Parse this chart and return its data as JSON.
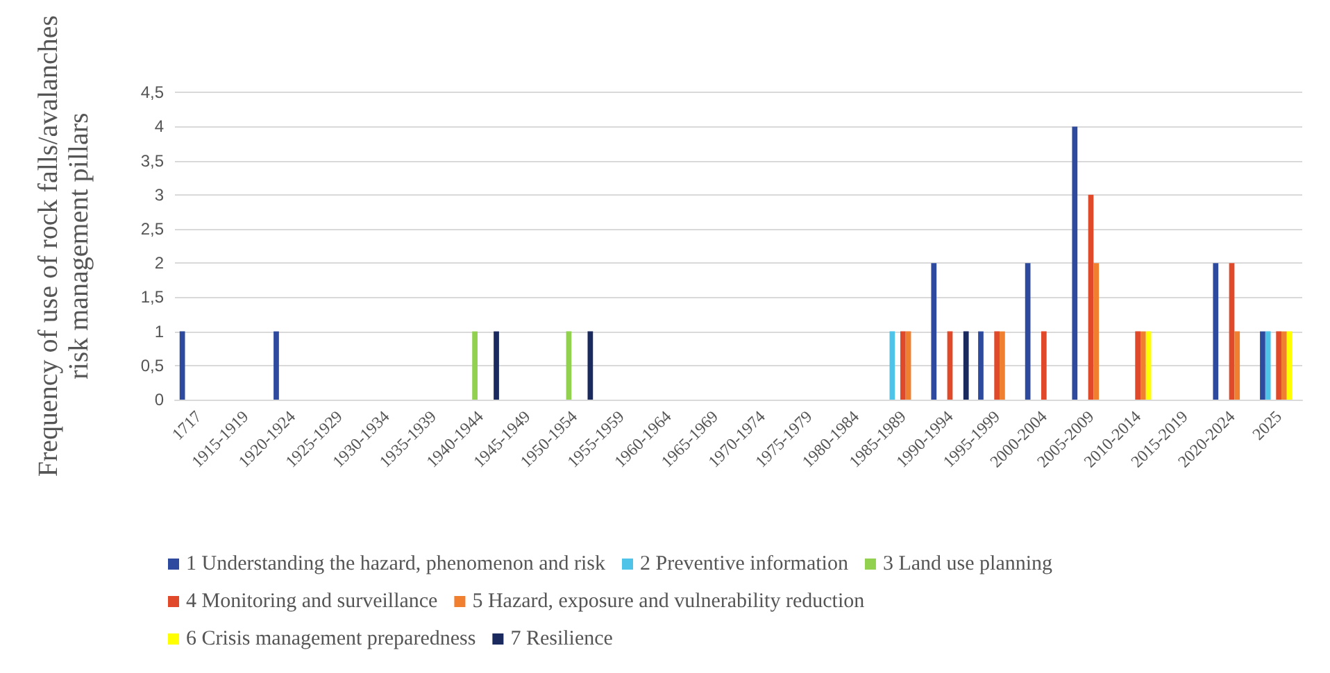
{
  "chart_data": {
    "type": "bar",
    "ylabel": "Frequency of use of rock falls/avalanches\nrisk management pillars",
    "categories": [
      "1717",
      "1915-1919",
      "1920-1924",
      "1925-1929",
      "1930-1934",
      "1935-1939",
      "1940-1944",
      "1945-1949",
      "1950-1954",
      "1955-1959",
      "1960-1964",
      "1965-1969",
      "1970-1974",
      "1975-1979",
      "1980-1984",
      "1985-1989",
      "1990-1994",
      "1995-1999",
      "2000-2004",
      "2005-2009",
      "2010-2014",
      "2015-2019",
      "2020-2024",
      "2025"
    ],
    "series": [
      {
        "name": "1 Understanding the hazard, phenomenon and risk",
        "color": "#2e4a9e",
        "values": [
          1,
          0,
          1,
          0,
          0,
          0,
          0,
          0,
          0,
          0,
          0,
          0,
          0,
          0,
          0,
          0,
          2,
          1,
          2,
          4,
          0,
          0,
          2,
          1
        ]
      },
      {
        "name": "2 Preventive information",
        "color": "#4fc3e8",
        "values": [
          0,
          0,
          0,
          0,
          0,
          0,
          0,
          0,
          0,
          0,
          0,
          0,
          0,
          0,
          0,
          1,
          0,
          0,
          0,
          0,
          0,
          0,
          0,
          1
        ]
      },
      {
        "name": "3 Land use planning",
        "color": "#92d050",
        "values": [
          0,
          0,
          0,
          0,
          0,
          0,
          1,
          0,
          1,
          0,
          0,
          0,
          0,
          0,
          0,
          0,
          0,
          0,
          0,
          0,
          0,
          0,
          0,
          0
        ]
      },
      {
        "name": "4 Monitoring and surveillance",
        "color": "#e04a2a",
        "values": [
          0,
          0,
          0,
          0,
          0,
          0,
          0,
          0,
          0,
          0,
          0,
          0,
          0,
          0,
          0,
          1,
          1,
          1,
          1,
          3,
          1,
          0,
          2,
          1
        ]
      },
      {
        "name": "5 Hazard, exposure and vulnerability reduction",
        "color": "#f08030",
        "values": [
          0,
          0,
          0,
          0,
          0,
          0,
          0,
          0,
          0,
          0,
          0,
          0,
          0,
          0,
          0,
          1,
          0,
          1,
          0,
          2,
          1,
          0,
          1,
          1
        ]
      },
      {
        "name": "6 Crisis management preparedness",
        "color": "#ffff00",
        "values": [
          0,
          0,
          0,
          0,
          0,
          0,
          0,
          0,
          0,
          0,
          0,
          0,
          0,
          0,
          0,
          0,
          0,
          0,
          0,
          0,
          1,
          0,
          0,
          1
        ]
      },
      {
        "name": "7 Resilience",
        "color": "#1a2a5e",
        "values": [
          0,
          0,
          0,
          0,
          0,
          0,
          1,
          0,
          1,
          0,
          0,
          0,
          0,
          0,
          0,
          0,
          1,
          0,
          0,
          0,
          0,
          0,
          0,
          0
        ]
      }
    ],
    "ylim": [
      0,
      4.5
    ],
    "yticks": [
      {
        "value": 0,
        "label": "0"
      },
      {
        "value": 0.5,
        "label": "0,5"
      },
      {
        "value": 1,
        "label": "1"
      },
      {
        "value": 1.5,
        "label": "1,5"
      },
      {
        "value": 2,
        "label": "2"
      },
      {
        "value": 2.5,
        "label": "2,5"
      },
      {
        "value": 3,
        "label": "3"
      },
      {
        "value": 3.5,
        "label": "3,5"
      },
      {
        "value": 4,
        "label": "4"
      },
      {
        "value": 4.5,
        "label": "4,5"
      }
    ],
    "grid": "y",
    "legend": "bottom"
  }
}
